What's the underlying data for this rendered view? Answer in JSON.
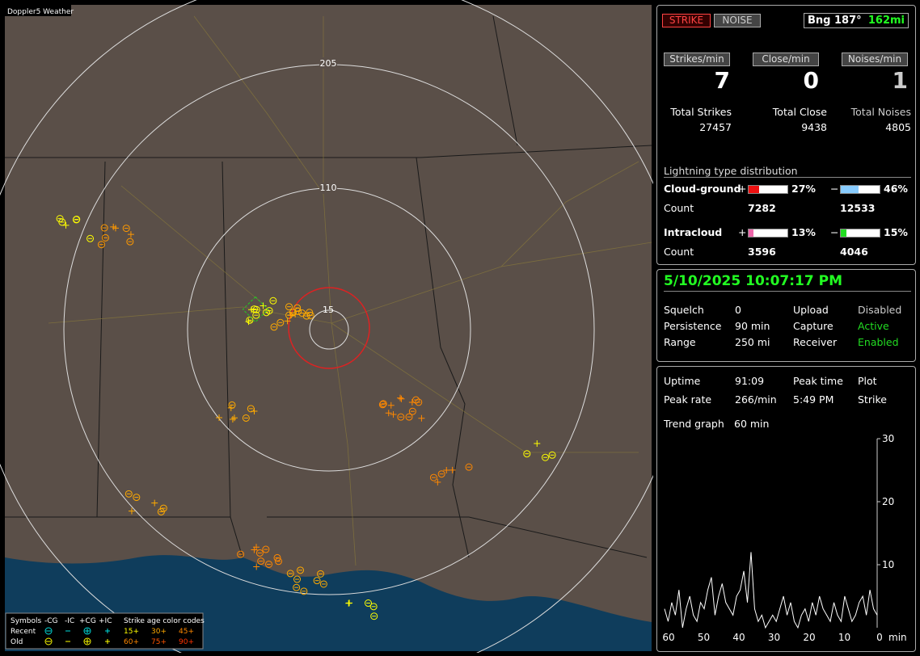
{
  "map": {
    "title": "Doppler5 Weather",
    "rings": [
      "205",
      "110",
      "15"
    ],
    "legend": {
      "header": [
        "Symbols",
        "-CG",
        "-IC",
        "+CG",
        "+IC",
        "Strike age color codes"
      ],
      "rows": [
        {
          "label": "Recent",
          "ages": [
            "15+",
            "30+",
            "45+"
          ]
        },
        {
          "label": "Old",
          "ages": [
            "60+",
            "75+",
            "90+"
          ]
        }
      ]
    }
  },
  "status": {
    "buttons": [
      "STRIKE",
      "NOISE"
    ],
    "bearing": "Bng 187°",
    "distance": "162mi"
  },
  "rates": [
    {
      "label": "Strikes/min",
      "value": "7"
    },
    {
      "label": "Close/min",
      "value": "0"
    },
    {
      "label": "Noises/min",
      "value": "1"
    }
  ],
  "totals": [
    {
      "label": "Total Strikes",
      "value": "27457"
    },
    {
      "label": "Total Close",
      "value": "9438"
    },
    {
      "label": "Total Noises",
      "value": "4805"
    }
  ],
  "distribution": {
    "title": "Lightning type distribution",
    "count_label": "Count",
    "rows": [
      {
        "label": "Cloud-ground",
        "pos": {
          "sign": "+",
          "percent": {
            "value": 27,
            "label": "27%"
          },
          "count": "7282"
        },
        "neg": {
          "sign": "−",
          "percent": {
            "value": 46,
            "label": "46%"
          },
          "count": "12533"
        }
      },
      {
        "label": "Intracloud",
        "pos": {
          "sign": "+",
          "percent": {
            "value": 13,
            "label": "13%"
          },
          "count": "3596"
        },
        "neg": {
          "sign": "−",
          "percent": {
            "value": 15,
            "label": "15%"
          },
          "count": "4046"
        }
      }
    ]
  },
  "datetime": "5/10/2025 10:07:17 PM",
  "settings": [
    [
      "Squelch",
      "0",
      "Upload",
      "Disabled"
    ],
    [
      "Persistence",
      "90 min",
      "Capture",
      "Active"
    ],
    [
      "Range",
      "250 mi",
      "Receiver",
      "Enabled"
    ]
  ],
  "stats": [
    [
      "Uptime",
      "91:09",
      "Peak time",
      "Plot"
    ],
    [
      "Peak rate",
      "266/min",
      "5:49 PM",
      "Strike"
    ]
  ],
  "trend": {
    "label": "Trend graph",
    "window": "60 min",
    "ylim": [
      0,
      30
    ],
    "yticks": [
      30,
      20,
      10
    ],
    "xticks": [
      "60",
      "50",
      "40",
      "30",
      "20",
      "10",
      "0"
    ],
    "unit": "min",
    "values": [
      3,
      1,
      4,
      2,
      6,
      0,
      3,
      5,
      2,
      1,
      4,
      3,
      6,
      8,
      2,
      5,
      7,
      4,
      3,
      2,
      5,
      6,
      9,
      4,
      12,
      3,
      1,
      2,
      0,
      1,
      2,
      1,
      3,
      5,
      2,
      4,
      1,
      0,
      2,
      3,
      1,
      4,
      2,
      5,
      3,
      2,
      1,
      4,
      2,
      1,
      5,
      3,
      1,
      2,
      4,
      5,
      2,
      6,
      3,
      2
    ]
  }
}
